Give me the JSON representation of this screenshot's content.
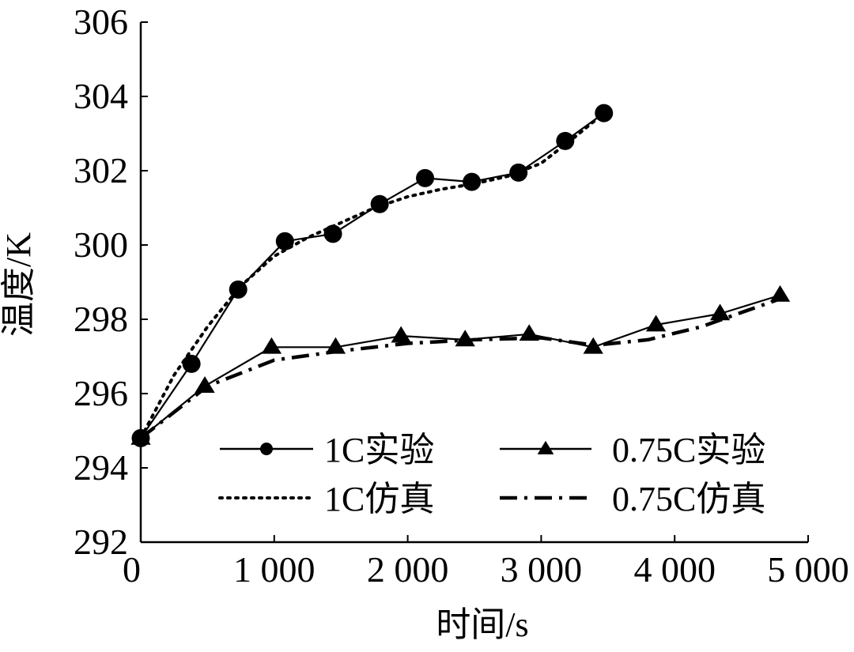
{
  "chart_data": {
    "type": "line",
    "title": "",
    "xlabel": "时间/s",
    "ylabel": "温度/K",
    "xlim": [
      0,
      5000
    ],
    "ylim": [
      292,
      306
    ],
    "x_ticks": [
      0,
      1000,
      2000,
      3000,
      4000,
      5000
    ],
    "x_tick_labels": [
      "0",
      "1 000",
      "2 000",
      "3 000",
      "4 000",
      "5 000"
    ],
    "y_ticks": [
      292,
      294,
      296,
      298,
      300,
      302,
      304,
      306
    ],
    "y_tick_labels": [
      "292",
      "294",
      "296",
      "298",
      "300",
      "302",
      "304",
      "306"
    ],
    "legend_position": "bottom-right",
    "series": [
      {
        "name": "1C实验",
        "style": "solid",
        "marker": "circle",
        "x": [
          0,
          380,
          730,
          1080,
          1440,
          1790,
          2130,
          2480,
          2830,
          3180,
          3470
        ],
        "y": [
          294.8,
          296.8,
          298.8,
          300.1,
          300.3,
          301.1,
          301.8,
          301.7,
          301.95,
          302.8,
          303.55
        ]
      },
      {
        "name": "0.75C实验",
        "style": "solid",
        "marker": "triangle",
        "x": [
          0,
          480,
          980,
          1460,
          1950,
          2430,
          2910,
          3390,
          3860,
          4340,
          4790
        ],
        "y": [
          294.8,
          296.2,
          297.25,
          297.25,
          297.55,
          297.45,
          297.6,
          297.25,
          297.85,
          298.15,
          298.65
        ]
      },
      {
        "name": "1C仿真",
        "style": "dotted",
        "marker": "none",
        "x": [
          0,
          250,
          500,
          750,
          1000,
          1250,
          1500,
          1750,
          2000,
          2250,
          2500,
          2750,
          3000,
          3250,
          3470
        ],
        "y": [
          294.8,
          296.5,
          297.8,
          298.9,
          299.7,
          300.2,
          300.6,
          301.0,
          301.3,
          301.5,
          301.65,
          301.85,
          302.2,
          302.9,
          303.55
        ]
      },
      {
        "name": "0.75C仿真",
        "style": "dash-dot",
        "marker": "none",
        "x": [
          0,
          500,
          1000,
          1500,
          2000,
          2500,
          3000,
          3400,
          3800,
          4200,
          4790
        ],
        "y": [
          294.8,
          296.2,
          296.9,
          297.15,
          297.35,
          297.45,
          297.5,
          297.3,
          297.45,
          297.8,
          298.55
        ]
      }
    ]
  }
}
